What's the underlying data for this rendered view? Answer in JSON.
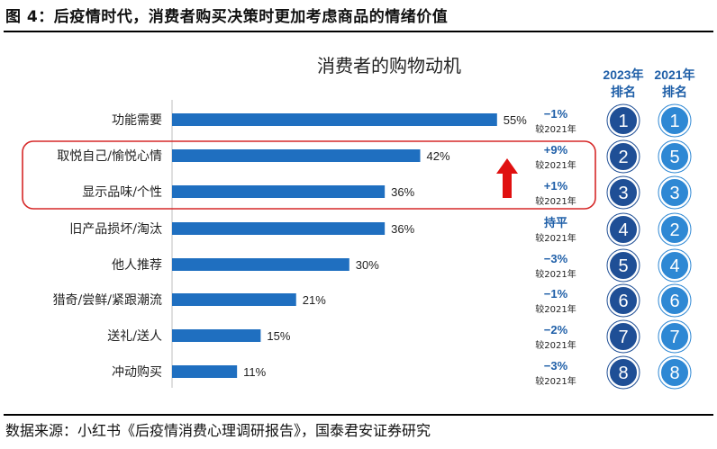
{
  "figure_title": "图 4：后疫情时代，消费者购买决策时更加考虑商品的情绪价值",
  "source": "数据来源：小红书《后疫情消费心理调研报告》，国泰君安证券研究",
  "colors": {
    "bar": "#1f6fc0",
    "highlight_border": "#d62828",
    "arrow": "#e01010",
    "rank_2023_fill": "#1f4f96",
    "rank_2021_fill": "#2e88d4",
    "change_text": "#1f5fa8"
  },
  "chart_data": {
    "type": "bar",
    "orientation": "horizontal",
    "title": "消费者的购物动机",
    "categories": [
      "功能需要",
      "取悦自己/愉悦心情",
      "显示品味/个性",
      "旧产品损坏/淘汰",
      "他人推荐",
      "猎奇/尝鲜/紧跟潮流",
      "送礼/送人",
      "冲动购买"
    ],
    "values": [
      55,
      42,
      36,
      36,
      30,
      21,
      15,
      11
    ],
    "value_labels": [
      "55%",
      "42%",
      "36%",
      "36%",
      "30%",
      "21%",
      "15%",
      "11%"
    ],
    "xlim": [
      0,
      60
    ],
    "grid": false,
    "highlighted_categories": [
      "取悦自己/愉悦心情",
      "显示品味/个性"
    ],
    "change_vs_2021": [
      "−1%",
      "+9%",
      "+1%",
      "持平",
      "−3%",
      "−1%",
      "−2%",
      "−3%"
    ],
    "change_note": "较2021年",
    "rank_columns": [
      {
        "header_line1": "2023年",
        "header_line2": "排名",
        "ranks": [
          1,
          2,
          3,
          4,
          5,
          6,
          7,
          8
        ]
      },
      {
        "header_line1": "2021年",
        "header_line2": "排名",
        "ranks": [
          1,
          5,
          3,
          2,
          4,
          6,
          7,
          8
        ]
      }
    ]
  }
}
